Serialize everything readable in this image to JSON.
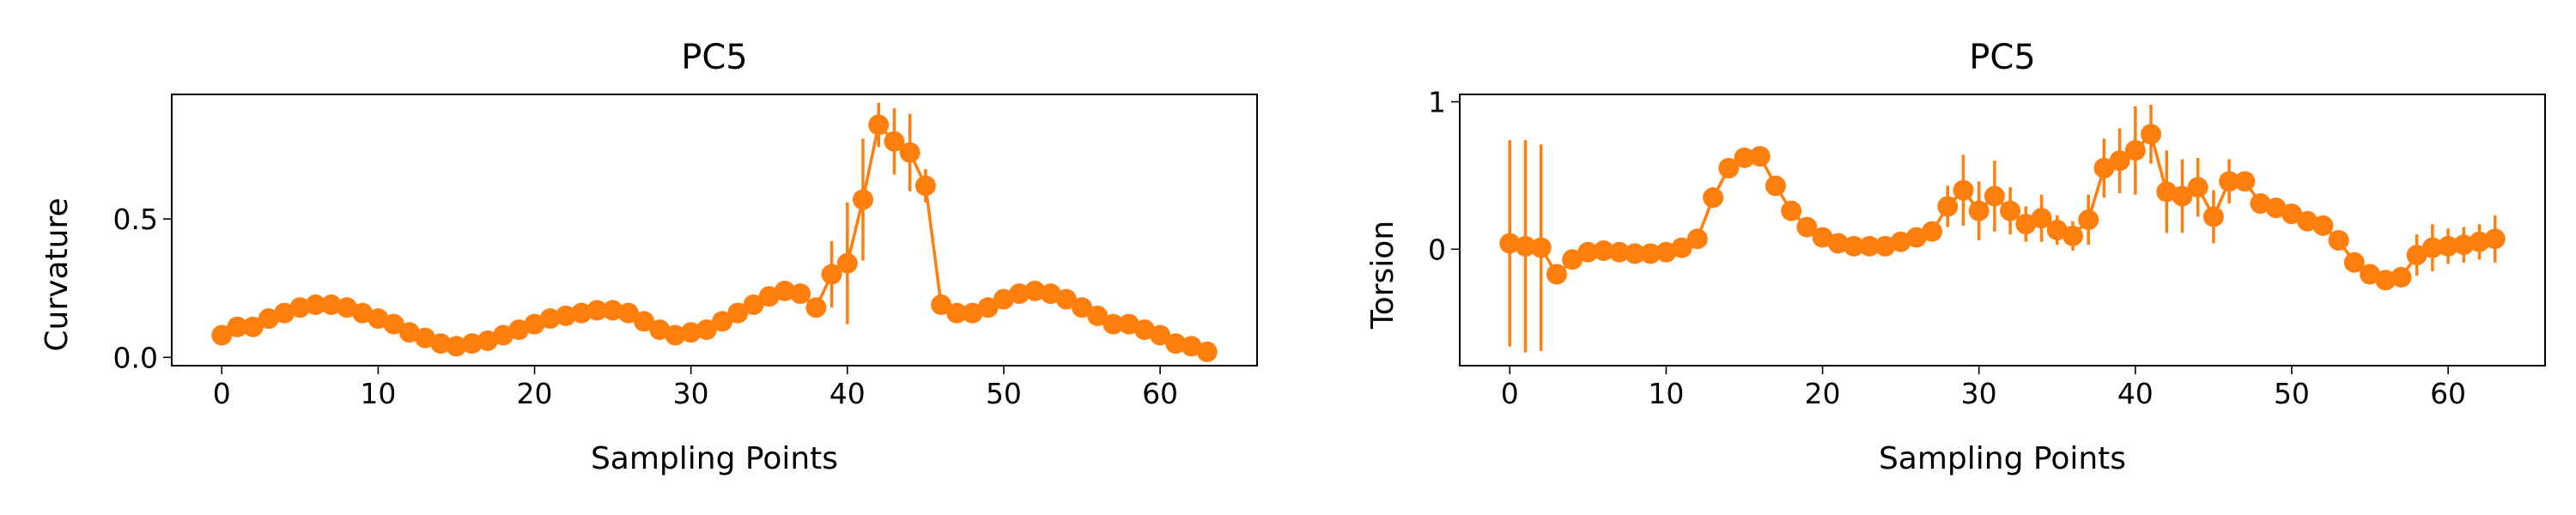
{
  "chart_data": [
    {
      "type": "line",
      "title": "PC5",
      "xlabel": "Sampling Points",
      "ylabel": "Curvature",
      "xlim": [
        -3.2,
        66.2
      ],
      "ylim": [
        -0.03,
        0.95
      ],
      "xticks": [
        0,
        10,
        20,
        30,
        40,
        50,
        60
      ],
      "yticks": [
        0.0,
        0.5
      ],
      "ytick_labels": [
        "0.0",
        "0.5"
      ],
      "color": "#ff7f0e",
      "marker": "circle",
      "series": [
        {
          "x": [
            0,
            1,
            2,
            3,
            4,
            5,
            6,
            7,
            8,
            9,
            10,
            11,
            12,
            13,
            14,
            15,
            16,
            17,
            18,
            19,
            20,
            21,
            22,
            23,
            24,
            25,
            26,
            27,
            28,
            29,
            30,
            31,
            32,
            33,
            34,
            35,
            36,
            37,
            38,
            39,
            40,
            41,
            42,
            43,
            44,
            45,
            46,
            47,
            48,
            49,
            50,
            51,
            52,
            53,
            54,
            55,
            56,
            57,
            58,
            59,
            60,
            61,
            62,
            63
          ],
          "y": [
            0.08,
            0.11,
            0.11,
            0.14,
            0.16,
            0.18,
            0.19,
            0.19,
            0.18,
            0.16,
            0.14,
            0.12,
            0.09,
            0.07,
            0.05,
            0.04,
            0.05,
            0.06,
            0.08,
            0.1,
            0.12,
            0.14,
            0.15,
            0.16,
            0.17,
            0.17,
            0.16,
            0.13,
            0.1,
            0.08,
            0.09,
            0.1,
            0.13,
            0.16,
            0.19,
            0.22,
            0.24,
            0.23,
            0.18,
            0.3,
            0.34,
            0.57,
            0.84,
            0.78,
            0.74,
            0.62,
            0.19,
            0.16,
            0.16,
            0.18,
            0.21,
            0.23,
            0.24,
            0.23,
            0.21,
            0.18,
            0.15,
            0.12,
            0.12,
            0.1,
            0.08,
            0.05,
            0.04,
            0.02
          ],
          "error": [
            0,
            0,
            0,
            0,
            0,
            0,
            0,
            0,
            0,
            0,
            0,
            0,
            0,
            0,
            0,
            0,
            0,
            0,
            0,
            0,
            0,
            0,
            0,
            0,
            0,
            0,
            0,
            0,
            0,
            0,
            0,
            0,
            0,
            0,
            0,
            0,
            0.02,
            0,
            0,
            0.12,
            0.22,
            0.22,
            0.08,
            0.12,
            0.14,
            0.06,
            0,
            0,
            0,
            0,
            0,
            0,
            0,
            0,
            0,
            0,
            0,
            0,
            0,
            0,
            0,
            0,
            0,
            0
          ]
        }
      ]
    },
    {
      "type": "line",
      "title": "PC5",
      "xlabel": "Sampling Points",
      "ylabel": "Torsion",
      "xlim": [
        -3.2,
        66.2
      ],
      "ylim": [
        -0.79,
        1.05
      ],
      "xticks": [
        0,
        10,
        20,
        30,
        40,
        50,
        60
      ],
      "yticks": [
        0,
        1
      ],
      "ytick_labels": [
        "0",
        "1"
      ],
      "color": "#ff7f0e",
      "marker": "circle",
      "series": [
        {
          "x": [
            0,
            1,
            2,
            3,
            4,
            5,
            6,
            7,
            8,
            9,
            10,
            11,
            12,
            13,
            14,
            15,
            16,
            17,
            18,
            19,
            20,
            21,
            22,
            23,
            24,
            25,
            26,
            27,
            28,
            29,
            30,
            31,
            32,
            33,
            34,
            35,
            36,
            37,
            38,
            39,
            40,
            41,
            42,
            43,
            44,
            45,
            46,
            47,
            48,
            49,
            50,
            51,
            52,
            53,
            54,
            55,
            56,
            57,
            58,
            59,
            60,
            61,
            62,
            63
          ],
          "y": [
            0.04,
            0.02,
            0.01,
            -0.17,
            -0.07,
            -0.02,
            -0.01,
            -0.02,
            -0.03,
            -0.03,
            -0.02,
            0.01,
            0.07,
            0.35,
            0.55,
            0.62,
            0.63,
            0.43,
            0.26,
            0.15,
            0.08,
            0.04,
            0.02,
            0.02,
            0.02,
            0.05,
            0.08,
            0.12,
            0.29,
            0.4,
            0.26,
            0.36,
            0.26,
            0.17,
            0.21,
            0.13,
            0.09,
            0.2,
            0.55,
            0.6,
            0.67,
            0.78,
            0.39,
            0.36,
            0.42,
            0.22,
            0.46,
            0.46,
            0.31,
            0.28,
            0.24,
            0.19,
            0.16,
            0.06,
            -0.09,
            -0.17,
            -0.21,
            -0.19,
            -0.04,
            0.01,
            0.02,
            0.03,
            0.05,
            0.07
          ],
          "error": [
            0.7,
            0.72,
            0.7,
            0,
            0,
            0,
            0,
            0,
            0,
            0,
            0,
            0,
            0.05,
            0.07,
            0,
            0,
            0,
            0.04,
            0,
            0,
            0,
            0,
            0,
            0,
            0,
            0,
            0,
            0,
            0.14,
            0.24,
            0.2,
            0.24,
            0.16,
            0.12,
            0.16,
            0.1,
            0.1,
            0.17,
            0.2,
            0.22,
            0.3,
            0.2,
            0.28,
            0.25,
            0.2,
            0.18,
            0.15,
            0,
            0,
            0,
            0,
            0,
            0,
            0,
            0.06,
            0.06,
            0.06,
            0.06,
            0.14,
            0.16,
            0.12,
            0.12,
            0.12,
            0.16
          ]
        }
      ]
    }
  ]
}
